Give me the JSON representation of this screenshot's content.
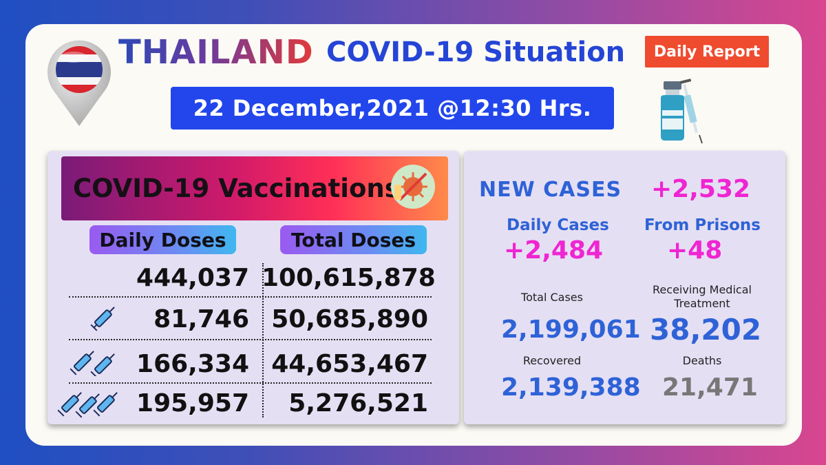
{
  "header": {
    "country": "THAILAND",
    "title": "COVID-19 Situation",
    "badge": "Daily Report",
    "datetime": "22 December,2021 @12:30 Hrs."
  },
  "icons": {
    "flag_pin": "thailand-flag-pin-icon",
    "vaccine": "vaccine-vial-syringe-icon",
    "virus": "virus-vaccine-icon",
    "dose1": "syringe-1-icon",
    "dose2": "syringe-2-icon",
    "dose3": "syringe-3-icon"
  },
  "colors": {
    "date_bg": "#2246ec",
    "badge_bg": "#ef4b2f",
    "blue": "#2e62d6",
    "pink": "#ef25d2"
  },
  "vaccinations": {
    "title": "COVID-19 Vaccinations",
    "daily_header": "Daily Doses",
    "total_header": "Total Doses",
    "rows": [
      {
        "daily": "444,037",
        "total": "100,615,878"
      },
      {
        "daily": "81,746",
        "total": "50,685,890"
      },
      {
        "daily": "166,334",
        "total": "44,653,467"
      },
      {
        "daily": "195,957",
        "total": "5,276,521"
      }
    ]
  },
  "cases": {
    "new_cases_label": "NEW CASES",
    "new_cases_value": "+2,532",
    "daily_label": "Daily Cases",
    "daily_value": "+2,484",
    "prisons_label": "From Prisons",
    "prisons_value": "+48",
    "total_label": "Total Cases",
    "total_value": "2,199,061",
    "treatment_label_1": "Receiving Medical",
    "treatment_label_2": "Treatment",
    "treatment_value": "38,202",
    "recovered_label": "Recovered",
    "recovered_value": "2,139,388",
    "deaths_label": "Deaths",
    "deaths_value": "21,471"
  }
}
